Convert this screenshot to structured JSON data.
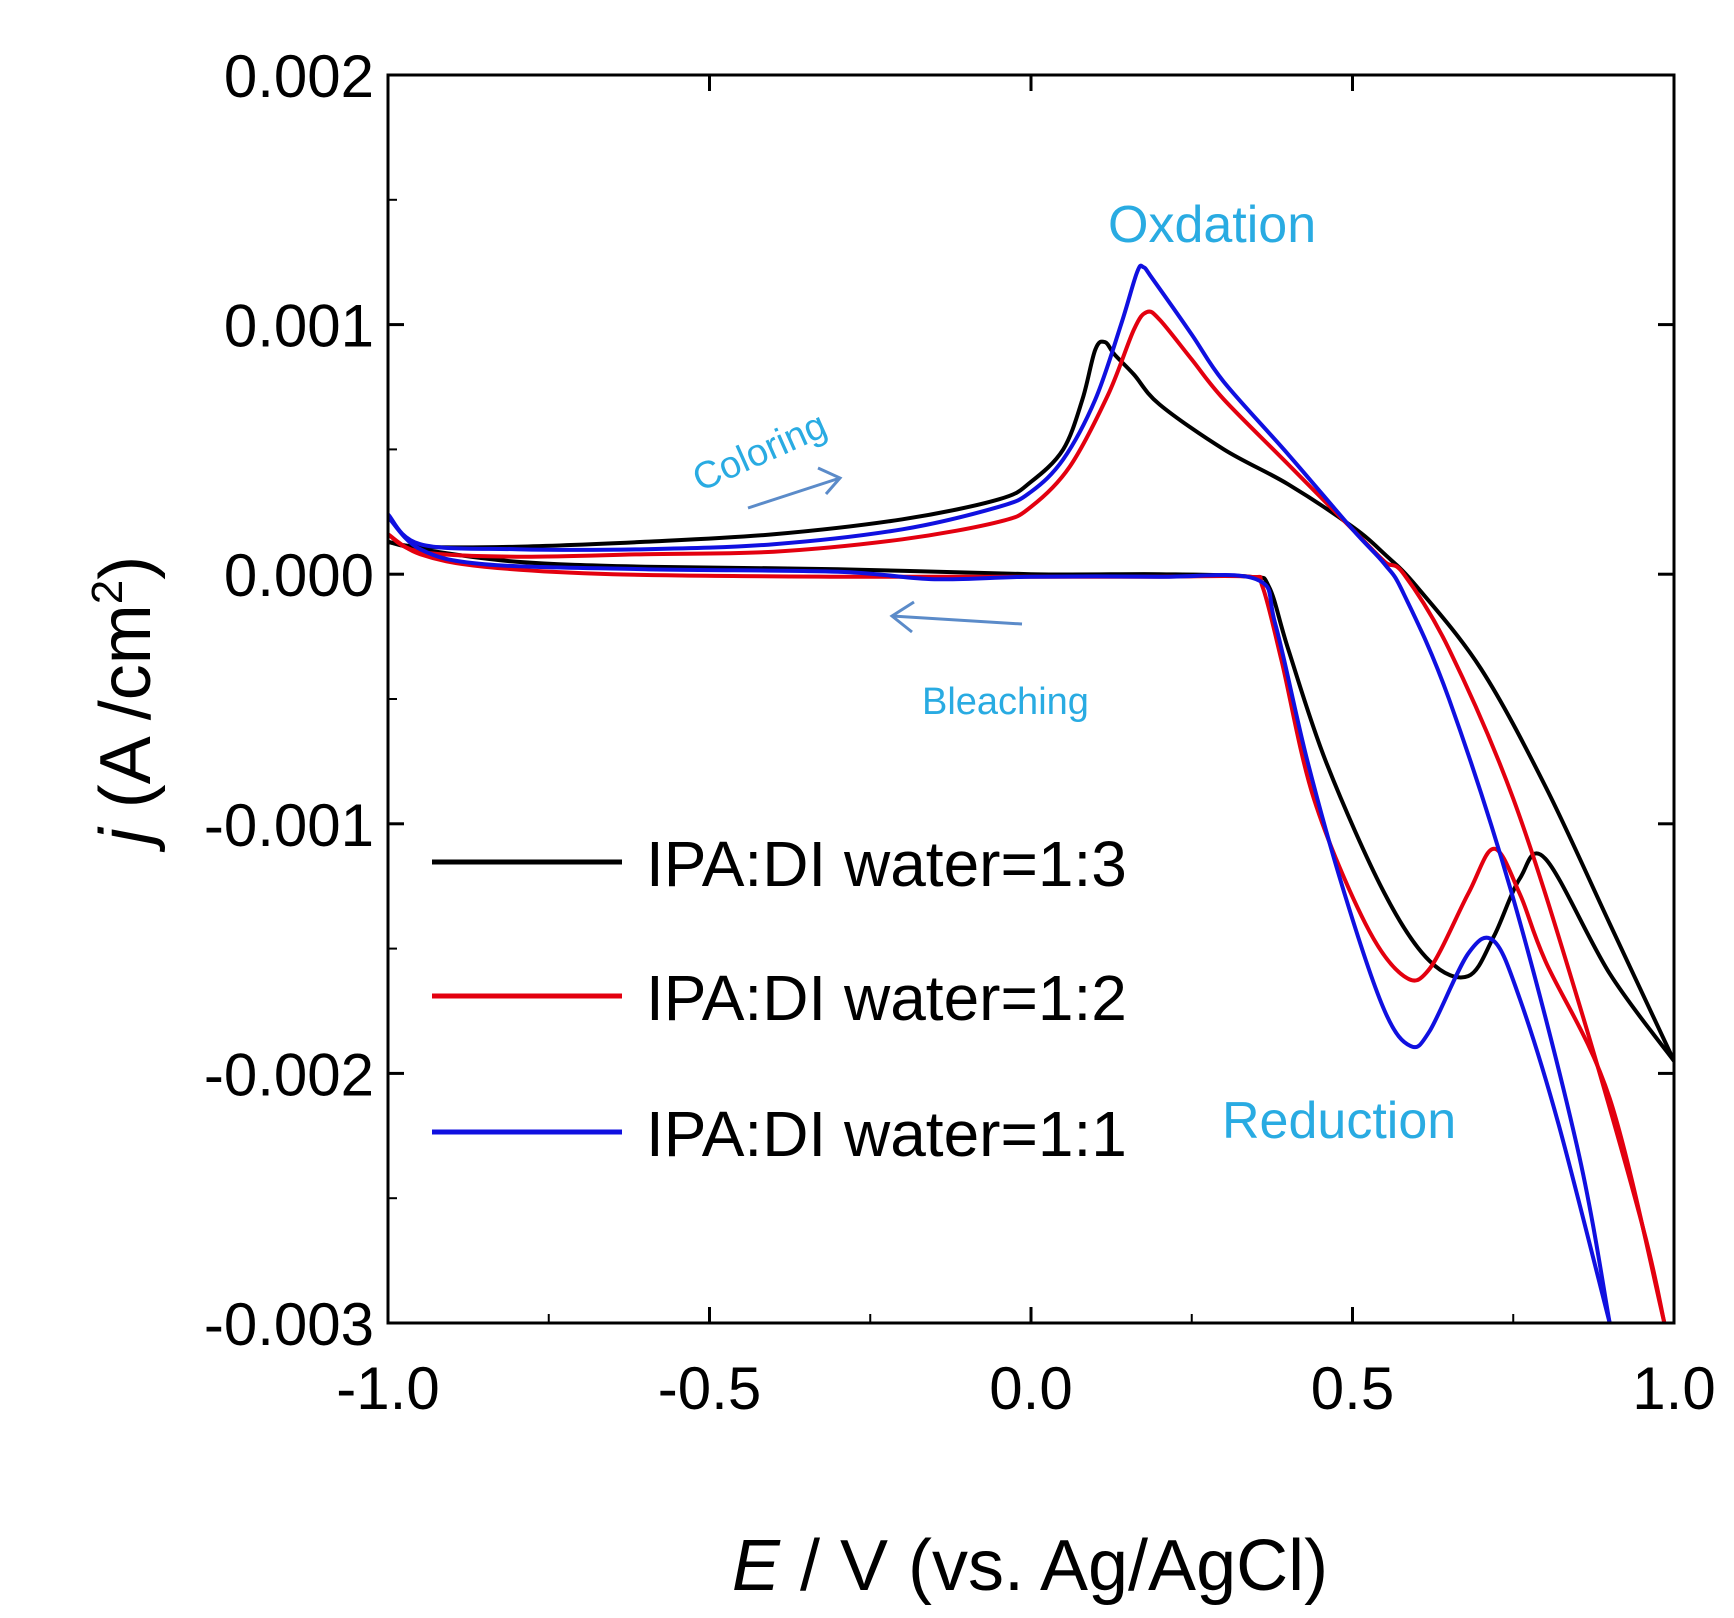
{
  "chart_data": {
    "type": "line",
    "title": "",
    "xlabel_var": "E",
    "xlabel_rest": " / V (vs. Ag/AgCl)",
    "ylabel_var": "j",
    "ylabel_rest": "  (A /cm",
    "ylabel_sup": "2",
    "ylabel_close": ")",
    "xlim": [
      -1.0,
      1.0
    ],
    "ylim": [
      -0.003,
      0.002
    ],
    "xticks": [
      -1.0,
      -0.5,
      0.0,
      0.5,
      1.0
    ],
    "xtick_labels": [
      "-1.0",
      "-0.5",
      "0.0",
      "0.5",
      "1.0"
    ],
    "yticks": [
      0.002,
      0.001,
      0.0,
      -0.001,
      -0.002,
      -0.003
    ],
    "ytick_labels": [
      "0.002",
      "0.001",
      "0.000",
      "-0.001",
      "-0.002",
      "-0.003"
    ],
    "grid": false,
    "legend_position": "left",
    "series": [
      {
        "name": "IPA:DI water=1:3",
        "color": "#000000",
        "forward": [
          [
            -1.0,
            0.00013
          ],
          [
            -0.95,
            0.00011
          ],
          [
            -0.8,
            0.00011
          ],
          [
            -0.6,
            0.00013
          ],
          [
            -0.4,
            0.00016
          ],
          [
            -0.2,
            0.00022
          ],
          [
            -0.05,
            0.0003
          ],
          [
            0.0,
            0.00037
          ],
          [
            0.05,
            0.0005
          ],
          [
            0.08,
            0.0007
          ],
          [
            0.1,
            0.0009
          ],
          [
            0.115,
            0.00093
          ],
          [
            0.13,
            0.00088
          ],
          [
            0.16,
            0.0008
          ],
          [
            0.2,
            0.00068
          ],
          [
            0.3,
            0.0005
          ],
          [
            0.4,
            0.00036
          ],
          [
            0.5,
            0.00019
          ],
          [
            0.55,
            8e-05
          ],
          [
            0.6,
            -5e-05
          ],
          [
            0.7,
            -0.00038
          ],
          [
            0.8,
            -0.00085
          ],
          [
            0.9,
            -0.0014
          ],
          [
            1.0,
            -0.00195
          ]
        ],
        "reverse": [
          [
            1.0,
            -0.00195
          ],
          [
            0.9,
            -0.0016
          ],
          [
            0.8,
            -0.00114
          ],
          [
            0.76,
            -0.00122
          ],
          [
            0.72,
            -0.00145
          ],
          [
            0.68,
            -0.00161
          ],
          [
            0.62,
            -0.00155
          ],
          [
            0.55,
            -0.00128
          ],
          [
            0.46,
            -0.00076
          ],
          [
            0.4,
            -0.0003
          ],
          [
            0.37,
            -5e-05
          ],
          [
            0.34,
            -1e-05
          ],
          [
            0.2,
            0.0
          ],
          [
            0.0,
            0.0
          ],
          [
            -0.3,
            2e-05
          ],
          [
            -0.6,
            3e-05
          ],
          [
            -0.8,
            5e-05
          ],
          [
            -0.95,
            0.0001
          ],
          [
            -1.0,
            0.00013
          ]
        ]
      },
      {
        "name": "IPA:DI water=1:2",
        "color": "#e3000f",
        "forward": [
          [
            -1.0,
            0.00016
          ],
          [
            -0.95,
            9e-05
          ],
          [
            -0.8,
            7e-05
          ],
          [
            -0.6,
            8e-05
          ],
          [
            -0.4,
            9e-05
          ],
          [
            -0.2,
            0.00014
          ],
          [
            -0.05,
            0.00021
          ],
          [
            0.0,
            0.00027
          ],
          [
            0.06,
            0.00043
          ],
          [
            0.12,
            0.00072
          ],
          [
            0.16,
            0.00098
          ],
          [
            0.18,
            0.00105
          ],
          [
            0.2,
            0.00102
          ],
          [
            0.25,
            0.00086
          ],
          [
            0.3,
            0.0007
          ],
          [
            0.4,
            0.00044
          ],
          [
            0.5,
            0.00018
          ],
          [
            0.55,
            5e-05
          ],
          [
            0.58,
            -0.0
          ],
          [
            0.65,
            -0.0003
          ],
          [
            0.75,
            -0.0009
          ],
          [
            0.85,
            -0.0017
          ],
          [
            0.95,
            -0.0026
          ],
          [
            0.985,
            -0.003
          ]
        ],
        "reverse": [
          [
            0.985,
            -0.003
          ],
          [
            0.9,
            -0.0021
          ],
          [
            0.8,
            -0.00155
          ],
          [
            0.76,
            -0.00128
          ],
          [
            0.72,
            -0.0011
          ],
          [
            0.68,
            -0.00128
          ],
          [
            0.62,
            -0.00158
          ],
          [
            0.58,
            -0.00161
          ],
          [
            0.52,
            -0.0014
          ],
          [
            0.44,
            -0.0009
          ],
          [
            0.39,
            -0.00035
          ],
          [
            0.36,
            -5e-05
          ],
          [
            0.34,
            -1e-05
          ],
          [
            0.2,
            -1e-05
          ],
          [
            0.0,
            -1e-05
          ],
          [
            -0.3,
            -1e-05
          ],
          [
            -0.65,
            0.0
          ],
          [
            -0.85,
            3e-05
          ],
          [
            -0.95,
            8e-05
          ],
          [
            -1.0,
            0.00016
          ]
        ]
      },
      {
        "name": "IPA:DI water=1:1",
        "color": "#1010e0",
        "forward": [
          [
            -1.0,
            0.00024
          ],
          [
            -0.95,
            0.00012
          ],
          [
            -0.8,
            0.0001
          ],
          [
            -0.6,
            0.0001
          ],
          [
            -0.4,
            0.00012
          ],
          [
            -0.2,
            0.00018
          ],
          [
            -0.05,
            0.00027
          ],
          [
            0.0,
            0.00033
          ],
          [
            0.05,
            0.00046
          ],
          [
            0.1,
            0.0007
          ],
          [
            0.14,
            0.001
          ],
          [
            0.165,
            0.00121
          ],
          [
            0.175,
            0.00123
          ],
          [
            0.19,
            0.00118
          ],
          [
            0.25,
            0.00096
          ],
          [
            0.3,
            0.00077
          ],
          [
            0.4,
            0.00048
          ],
          [
            0.5,
            0.00018
          ],
          [
            0.55,
            4e-05
          ],
          [
            0.58,
            -8e-05
          ],
          [
            0.65,
            -0.0005
          ],
          [
            0.75,
            -0.0013
          ],
          [
            0.85,
            -0.0023
          ],
          [
            0.9,
            -0.003
          ]
        ],
        "reverse": [
          [
            0.9,
            -0.003
          ],
          [
            0.82,
            -0.0022
          ],
          [
            0.76,
            -0.0017
          ],
          [
            0.72,
            -0.00147
          ],
          [
            0.68,
            -0.00152
          ],
          [
            0.62,
            -0.00183
          ],
          [
            0.59,
            -0.00189
          ],
          [
            0.55,
            -0.00175
          ],
          [
            0.49,
            -0.0013
          ],
          [
            0.43,
            -0.00075
          ],
          [
            0.38,
            -0.0002
          ],
          [
            0.35,
            -2e-05
          ],
          [
            0.2,
            -1e-05
          ],
          [
            0.0,
            -1e-05
          ],
          [
            -0.15,
            -2e-05
          ],
          [
            -0.3,
            1e-05
          ],
          [
            -0.6,
            2e-05
          ],
          [
            -0.85,
            4e-05
          ],
          [
            -0.95,
            0.0001
          ],
          [
            -1.0,
            0.00023
          ]
        ]
      }
    ],
    "annotations": {
      "oxidation": "Oxdation",
      "reduction": "Reduction",
      "coloring": "Coloring",
      "bleaching": "Bleaching"
    },
    "annotation_color": "#29abe2",
    "arrow_color": "#5b8bc9"
  }
}
